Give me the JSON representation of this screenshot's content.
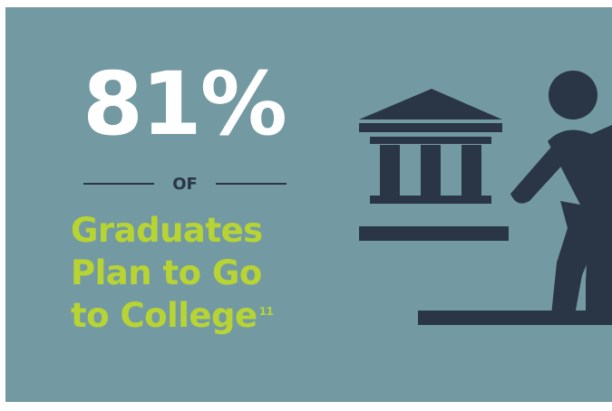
{
  "stat": {
    "value": "81%"
  },
  "connector": {
    "label": "OF"
  },
  "headline": {
    "lines": [
      "Graduates",
      "Plan to Go",
      "to College"
    ],
    "footnote": "11"
  },
  "colors": {
    "background": "#739aa2",
    "stat": "#ffffff",
    "connector": "#2a3646",
    "headline": "#b8d433",
    "icon": "#2a3646"
  },
  "icons": [
    "institution-icon",
    "student-climbing-stairs-icon"
  ]
}
